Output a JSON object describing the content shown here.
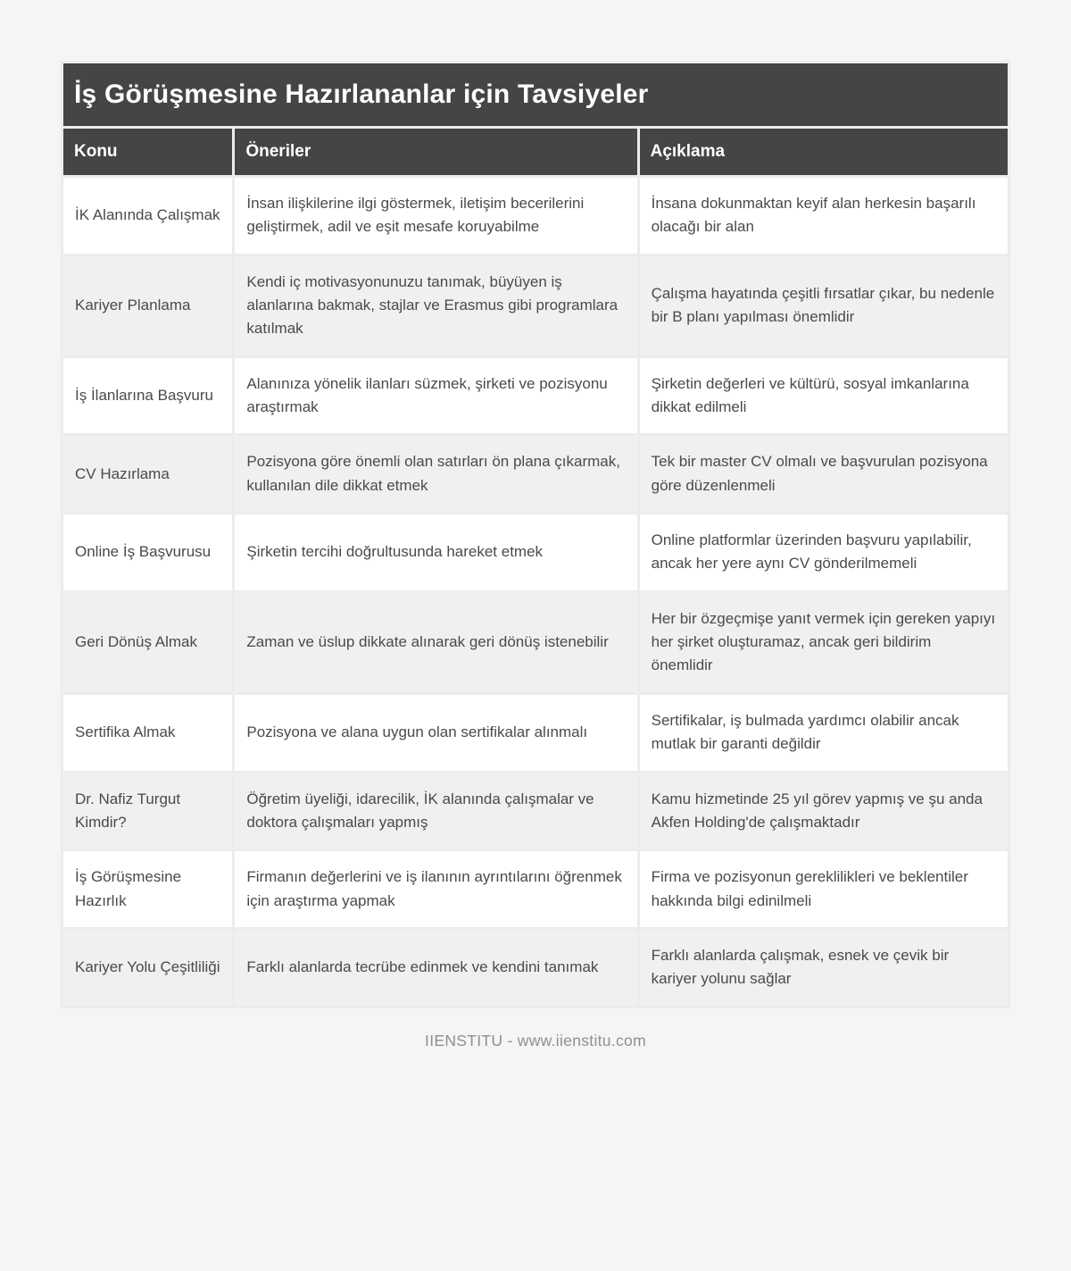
{
  "page": {
    "title": "İş Görüşmesine Hazırlananlar için Tavsiyeler",
    "footer_text": "IIENSTITU - www.iienstitu.com"
  },
  "table": {
    "columns": [
      {
        "key": "konu",
        "label": "Konu"
      },
      {
        "key": "oneriler",
        "label": "Öneriler"
      },
      {
        "key": "aciklama",
        "label": "Açıklama"
      }
    ],
    "rows": [
      {
        "konu": "İK Alanında Çalışmak",
        "oneriler": "İnsan ilişkilerine ilgi göstermek, iletişim becerilerini geliştirmek, adil ve eşit mesafe koruyabilme",
        "aciklama": "İnsana dokunmaktan keyif alan herkesin başarılı olacağı bir alan"
      },
      {
        "konu": "Kariyer Planlama",
        "oneriler": "Kendi iç motivasyonunuzu tanımak, büyüyen iş alanlarına bakmak, stajlar ve Erasmus gibi programlara katılmak",
        "aciklama": "Çalışma hayatında çeşitli fırsatlar çıkar, bu nedenle bir B planı yapılması önemlidir"
      },
      {
        "konu": "İş İlanlarına Başvuru",
        "oneriler": "Alanınıza yönelik ilanları süzmek, şirketi ve pozisyonu araştırmak",
        "aciklama": "Şirketin değerleri ve kültürü, sosyal imkanlarına dikkat edilmeli"
      },
      {
        "konu": "CV Hazırlama",
        "oneriler": "Pozisyona göre önemli olan satırları ön plana çıkarmak, kullanılan dile dikkat etmek",
        "aciklama": "Tek bir master CV olmalı ve başvurulan pozisyona göre düzenlenmeli"
      },
      {
        "konu": "Online İş Başvurusu",
        "oneriler": "Şirketin tercihi doğrultusunda hareket etmek",
        "aciklama": "Online platformlar üzerinden başvuru yapılabilir, ancak her yere aynı CV gönderilmemeli"
      },
      {
        "konu": "Geri Dönüş Almak",
        "oneriler": "Zaman ve üslup dikkate alınarak geri dönüş istenebilir",
        "aciklama": "Her bir özgeçmişe yanıt vermek için gereken yapıyı her şirket oluşturamaz, ancak geri bildirim önemlidir"
      },
      {
        "konu": "Sertifika Almak",
        "oneriler": "Pozisyona ve alana uygun olan sertifikalar alınmalı",
        "aciklama": "Sertifikalar, iş bulmada yardımcı olabilir ancak mutlak bir garanti değildir"
      },
      {
        "konu": "Dr. Nafiz Turgut Kimdir?",
        "oneriler": "Öğretim üyeliği, idarecilik, İK alanında çalışmalar ve doktora çalışmaları yapmış",
        "aciklama": "Kamu hizmetinde 25 yıl görev yapmış ve şu anda Akfen Holding'de çalışmaktadır"
      },
      {
        "konu": "İş Görüşmesine Hazırlık",
        "oneriler": "Firmanın değerlerini ve iş ilanının ayrıntılarını öğrenmek için araştırma yapmak",
        "aciklama": "Firma ve pozisyonun gereklilikleri ve beklentiler hakkında bilgi edinilmeli"
      },
      {
        "konu": "Kariyer Yolu Çeşitliliği",
        "oneriler": "Farklı alanlarda tecrübe edinmek ve kendini tanımak",
        "aciklama": "Farklı alanlarda çalışmak, esnek ve çevik bir kariyer yolunu sağlar"
      }
    ]
  },
  "colors": {
    "page_bg": "#f5f5f5",
    "header_bg": "#454545",
    "header_text": "#ffffff",
    "row_bg": "#ffffff",
    "row_alt_bg": "#f0f0f0",
    "grid_gap": "#ececec",
    "body_text": "#4a4a4a",
    "footer_text_color": "#8f8f8f"
  }
}
